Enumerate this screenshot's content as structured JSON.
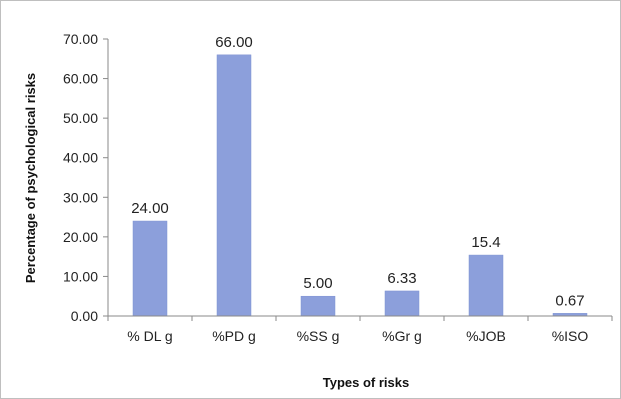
{
  "chart_data": {
    "type": "bar",
    "categories": [
      "% DL g",
      "%PD g",
      "%SS g",
      "%Gr g",
      "%JOB",
      "%ISO"
    ],
    "values": [
      24.0,
      66.0,
      5.0,
      6.33,
      15.4,
      0.67
    ],
    "value_labels": [
      "24.00",
      "66.00",
      "5.00",
      "6.33",
      "15.4",
      "0.67"
    ],
    "y_ticks": [
      "0.00",
      "10.00",
      "20.00",
      "30.00",
      "40.00",
      "50.00",
      "60.00",
      "70.00"
    ],
    "title": "",
    "xlabel": "Types of risks",
    "ylabel": "Percentage of psychological risks",
    "ylim": [
      0,
      70
    ],
    "grid": false,
    "legend": "none",
    "bar_color": "#8c9fdb",
    "bar_edge_color": "#7f93d2"
  }
}
